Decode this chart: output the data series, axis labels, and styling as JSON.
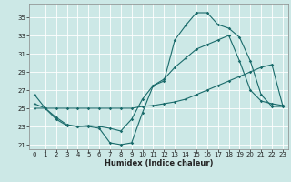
{
  "xlabel": "Humidex (Indice chaleur)",
  "bg_color": "#cce8e6",
  "line_color": "#1a6b6b",
  "grid_color": "#ffffff",
  "xlim": [
    -0.5,
    23.5
  ],
  "ylim": [
    20.5,
    36.5
  ],
  "yticks": [
    21,
    23,
    25,
    27,
    29,
    31,
    33,
    35
  ],
  "xticks": [
    0,
    1,
    2,
    3,
    4,
    5,
    6,
    7,
    8,
    9,
    10,
    11,
    12,
    13,
    14,
    15,
    16,
    17,
    18,
    19,
    20,
    21,
    22,
    23
  ],
  "series1_x": [
    0,
    1,
    2,
    3,
    4,
    5,
    6,
    7,
    8,
    9,
    10,
    11,
    12,
    13,
    14,
    15,
    16,
    17,
    18,
    19,
    20,
    21,
    22,
    23
  ],
  "series1_y": [
    26.5,
    25.0,
    24.0,
    23.2,
    23.0,
    23.0,
    22.8,
    21.2,
    21.0,
    21.2,
    24.5,
    27.5,
    28.0,
    32.5,
    34.1,
    35.5,
    35.5,
    34.2,
    33.8,
    32.8,
    30.2,
    26.5,
    25.2,
    25.2
  ],
  "series2_x": [
    0,
    1,
    2,
    3,
    4,
    5,
    6,
    7,
    8,
    9,
    10,
    11,
    12,
    13,
    14,
    15,
    16,
    17,
    18,
    19,
    20,
    21,
    22,
    23
  ],
  "series2_y": [
    25.0,
    25.0,
    25.0,
    25.0,
    25.0,
    25.0,
    25.0,
    25.0,
    25.0,
    25.0,
    25.2,
    25.3,
    25.5,
    25.7,
    26.0,
    26.5,
    27.0,
    27.5,
    28.0,
    28.5,
    29.0,
    29.5,
    29.8,
    25.3
  ],
  "series3_x": [
    0,
    1,
    2,
    3,
    4,
    5,
    6,
    7,
    8,
    9,
    10,
    11,
    12,
    13,
    14,
    15,
    16,
    17,
    18,
    19,
    20,
    21,
    22,
    23
  ],
  "series3_y": [
    25.5,
    25.0,
    23.8,
    23.1,
    23.0,
    23.1,
    23.0,
    22.8,
    22.5,
    23.8,
    26.0,
    27.5,
    28.2,
    29.5,
    30.5,
    31.5,
    32.0,
    32.5,
    33.0,
    30.2,
    27.0,
    25.8,
    25.5,
    25.3
  ],
  "xlabel_fontsize": 6.0,
  "tick_fontsize": 5.0,
  "marker_size": 1.8,
  "line_width": 0.8
}
